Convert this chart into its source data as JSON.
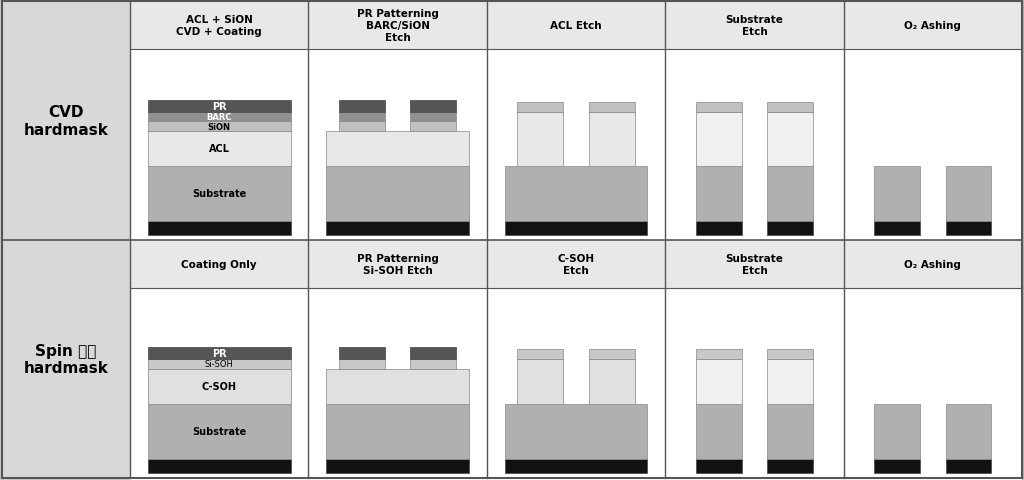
{
  "fig_width": 10.24,
  "fig_height": 4.81,
  "bg_color": "#d3d3d3",
  "panel_bg": "#e8e8e8",
  "left_label_bg": "#d3d3d3",
  "border_color": "#333333",
  "row_labels": [
    "CVD\nhardmask",
    "Spin 코팅\nhardmask"
  ],
  "col_labels_row1": [
    "ACL + SiON\nCVD + Coating",
    "PR Patterning\nBARC/SiON\nEtch",
    "ACL Etch",
    "Substrate\nEtch",
    "O₂ Ashing"
  ],
  "col_labels_row2": [
    "Coating Only",
    "PR Patterning\nSi-SOH Etch",
    "C-SOH\nEtch",
    "Substrate\nEtch",
    "O₂ Ashing"
  ],
  "colors": {
    "black": "#111111",
    "substrate": "#b0b0b0",
    "acl": "#e8e8e8",
    "sion": "#c0c0c0",
    "barc": "#909090",
    "pr": "#555555",
    "csoh": "#e0e0e0",
    "sisoh": "#c8c8c8"
  }
}
